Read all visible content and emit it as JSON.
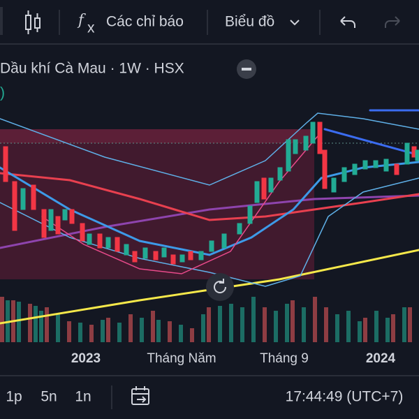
{
  "toolbar": {
    "function_icon": "f",
    "function_sub": "x",
    "indicators": "Các chỉ báo",
    "chart": "Biểu đồ"
  },
  "legend": {
    "symbol": "Dầu khí Cà Mau · 1W · HSX",
    "partial": ")"
  },
  "x_axis": {
    "labels": [
      "2023",
      "Tháng Năm",
      "Tháng 9",
      "2024"
    ]
  },
  "bottom_bar": {
    "intervals": [
      "1p",
      "5n",
      "1n"
    ],
    "clock": "17:44:49 (UTC+7)"
  }
}
